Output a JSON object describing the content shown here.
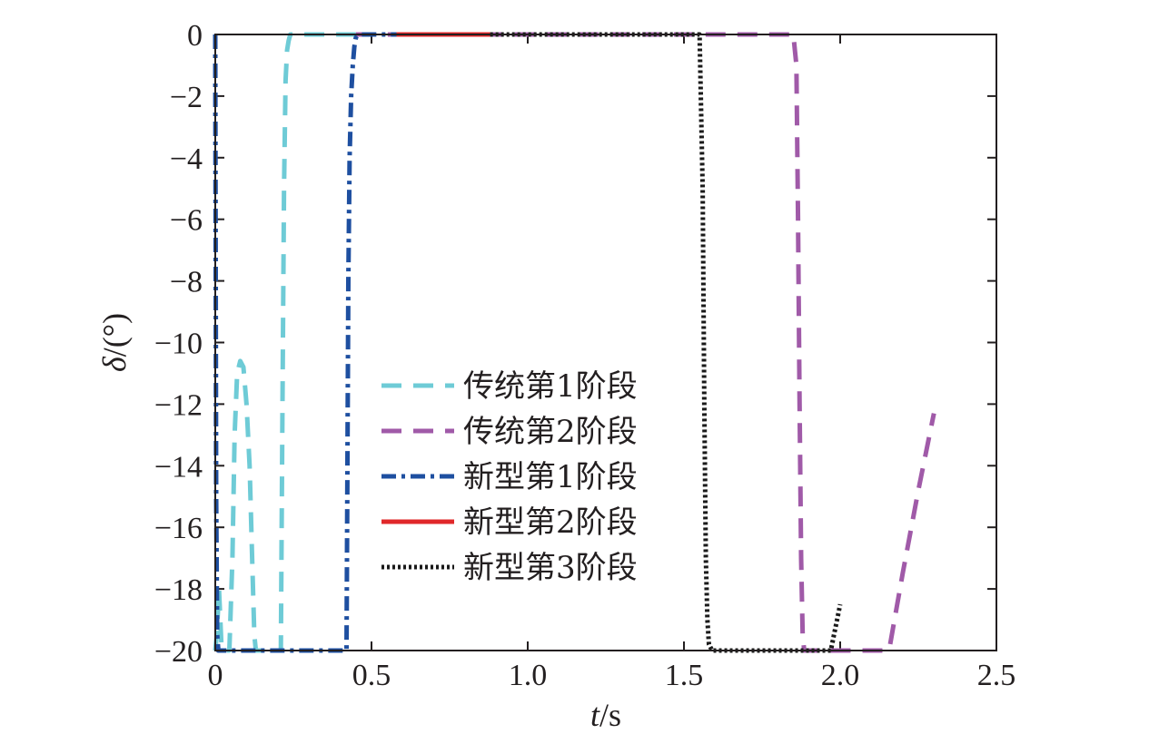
{
  "chart_data": {
    "type": "line",
    "xlabel": "t/s",
    "xlabel_italic": "t",
    "xlabel_unit": "/s",
    "ylabel": "δ/(°)",
    "ylabel_italic": "δ",
    "ylabel_unit": "/(°)",
    "xlim": [
      0,
      2.5
    ],
    "ylim": [
      -20,
      0
    ],
    "xticks": [
      0,
      0.5,
      1.0,
      1.5,
      2.0,
      2.5
    ],
    "xtick_labels": [
      "0",
      "0.5",
      "1.0",
      "1.5",
      "2.0",
      "2.5"
    ],
    "yticks": [
      0,
      -2,
      -4,
      -6,
      -8,
      -10,
      -12,
      -14,
      -16,
      -18,
      -20
    ],
    "ytick_labels": [
      "0",
      "−2",
      "−4",
      "−6",
      "−8",
      "−10",
      "−12",
      "−14",
      "−16",
      "−18",
      "−20"
    ],
    "grid": false,
    "legend_position": "lower-center",
    "series": [
      {
        "name": "传统第1阶段",
        "color": "#6ecbd6",
        "style": "dashed",
        "x": [
          0,
          0.005,
          0.012,
          0.02,
          0.03,
          0.045,
          0.055,
          0.062,
          0.07,
          0.08,
          0.09,
          0.1,
          0.11,
          0.118,
          0.125,
          0.13,
          0.14,
          0.16,
          0.19,
          0.21,
          0.215,
          0.22,
          0.225,
          0.23,
          0.235,
          0.24,
          0.26,
          0.3,
          0.35,
          0.42,
          0.45
        ],
        "y": [
          -20,
          -19.5,
          -18,
          -19.9,
          -20,
          -20,
          -17,
          -13,
          -11,
          -10.6,
          -10.8,
          -12,
          -14,
          -17,
          -19.5,
          -20,
          -20,
          -20,
          -20,
          -20,
          -12,
          -5,
          -1.5,
          -0.5,
          -0.2,
          0,
          0,
          0,
          0,
          0,
          0
        ]
      },
      {
        "name": "传统第2阶段",
        "color": "#a05aa8",
        "style": "dashed",
        "x": [
          0.45,
          0.8,
          1.2,
          1.6,
          1.85,
          1.86,
          1.865,
          1.87,
          1.875,
          1.88,
          1.885,
          1.9,
          2.0,
          2.1,
          2.15,
          2.16,
          2.2,
          2.25,
          2.3
        ],
        "y": [
          0,
          0,
          0,
          0,
          0,
          -1,
          -6,
          -12,
          -17,
          -19.5,
          -20,
          -20,
          -20,
          -20,
          -20,
          -19.8,
          -17.5,
          -14.8,
          -12.3
        ]
      },
      {
        "name": "新型第1阶段",
        "color": "#1e4fa0",
        "style": "dashdot",
        "x": [
          0,
          0.001,
          0.003,
          0.006,
          0.01,
          0.05,
          0.1,
          0.2,
          0.3,
          0.38,
          0.4,
          0.42,
          0.423,
          0.426,
          0.43,
          0.435,
          0.44,
          0.445,
          0.45,
          0.46,
          0.5,
          0.55,
          0.58
        ],
        "y": [
          0,
          -5,
          -15,
          -19.5,
          -20,
          -20,
          -20,
          -20,
          -20,
          -20,
          -20,
          -20,
          -14,
          -8,
          -4,
          -2,
          -1,
          -0.4,
          -0.1,
          0,
          0,
          0,
          0
        ]
      },
      {
        "name": "新型第2阶段",
        "color": "#e0282a",
        "style": "solid",
        "x": [
          0.58,
          0.7,
          0.8,
          0.88
        ],
        "y": [
          0,
          0,
          0,
          0
        ]
      },
      {
        "name": "新型第3阶段",
        "color": "#1a1a1a",
        "style": "dotted",
        "x": [
          0.88,
          1.0,
          1.2,
          1.4,
          1.55,
          1.56,
          1.565,
          1.57,
          1.575,
          1.58,
          1.59,
          1.6,
          1.7,
          1.8,
          1.9,
          1.97,
          1.98,
          1.99,
          2.0
        ],
        "y": [
          0,
          0,
          0,
          0,
          0,
          -5,
          -12,
          -17,
          -19,
          -19.8,
          -20,
          -20,
          -20,
          -20,
          -20,
          -20,
          -19.5,
          -19,
          -18.5
        ]
      }
    ]
  }
}
